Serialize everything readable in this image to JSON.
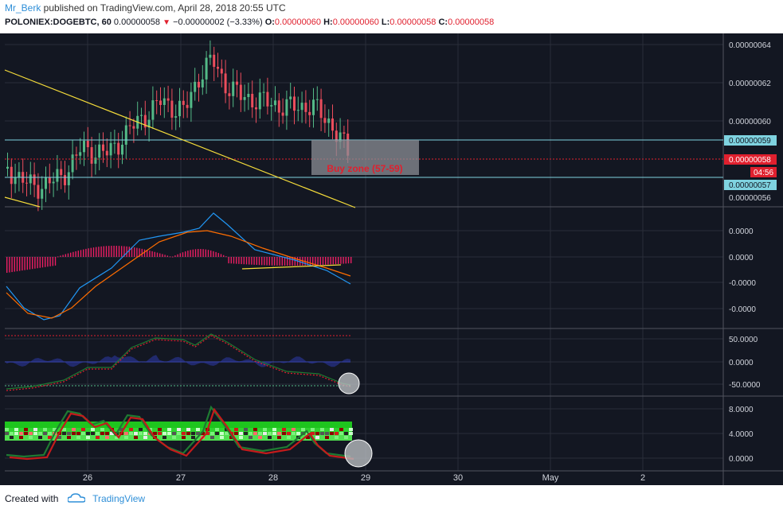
{
  "header": {
    "author": "Mr_Berk",
    "published_text": " published on TradingView.com, April 28, 2018 20:55 UTC",
    "symbol": "POLONIEX:DOGEBTC, 60",
    "last_price": "0.00000058",
    "change": "−0.00000002 (−3.33%)",
    "o_label": "O:",
    "o_value": "0.00000060",
    "h_label": "H:",
    "h_value": "0.00000060",
    "l_label": "L:",
    "l_value": "0.00000058",
    "c_label": "C:",
    "c_value": "0.00000058"
  },
  "price_axis": {
    "ticks": [
      "0.00000064",
      "0.00000062",
      "0.00000060",
      "0.00000056"
    ],
    "label_upper": "0.00000059",
    "label_current": "0.00000058",
    "countdown": "04:56",
    "label_lower": "0.00000057"
  },
  "annotation": {
    "buy_zone": "Buy zone (57-59)"
  },
  "macd_axis": {
    "ticks": [
      "0.0000",
      "0.0000",
      "-0.0000",
      "-0.0000"
    ]
  },
  "osc_axis": {
    "ticks": [
      "50.0000",
      "0.0000",
      "-50.0000"
    ]
  },
  "wt_axis": {
    "ticks": [
      "8.0000",
      "4.0000",
      "0.0000"
    ]
  },
  "time_axis": {
    "labels": [
      "26",
      "27",
      "28",
      "29",
      "30",
      "May",
      "2"
    ]
  },
  "footer": {
    "created_with": "Created with",
    "brand": "TradingView"
  },
  "colors": {
    "background": "#131722",
    "up": "#53b987",
    "down": "#eb4d5c",
    "trendline": "#f5dc3a",
    "levels": "#7fd3e0",
    "current_line": "#e0202e",
    "brand": "#2f8fd8"
  },
  "icons": {
    "arrow": "triangle-down-icon",
    "logo": "tradingview-cloud-icon"
  },
  "chart_data": {
    "type": "candlestick",
    "symbol": "POLONIEX:DOGEBTC",
    "interval": "60",
    "x_labels": [
      "26",
      "27",
      "28",
      "29",
      "30",
      "May",
      "2"
    ],
    "price_axis_ticks": [
      6.4e-07,
      6.2e-07,
      6e-07,
      5.6e-07
    ],
    "levels": [
      5.9e-07,
      5.8e-07,
      5.7e-07
    ],
    "closes_approx": [
      5.7e-07,
      5.6e-07,
      5.7e-07,
      5.9e-07,
      5.8e-07,
      5.9e-07,
      6e-07,
      6.1e-07,
      6.1e-07,
      6e-07,
      6.1e-07,
      6.3e-07,
      6.2e-07,
      6.1e-07,
      6.1e-07,
      6e-07,
      6e-07,
      5.9e-07,
      5.8e-07
    ],
    "annotations": [
      "Buy zone (57-59)"
    ]
  }
}
